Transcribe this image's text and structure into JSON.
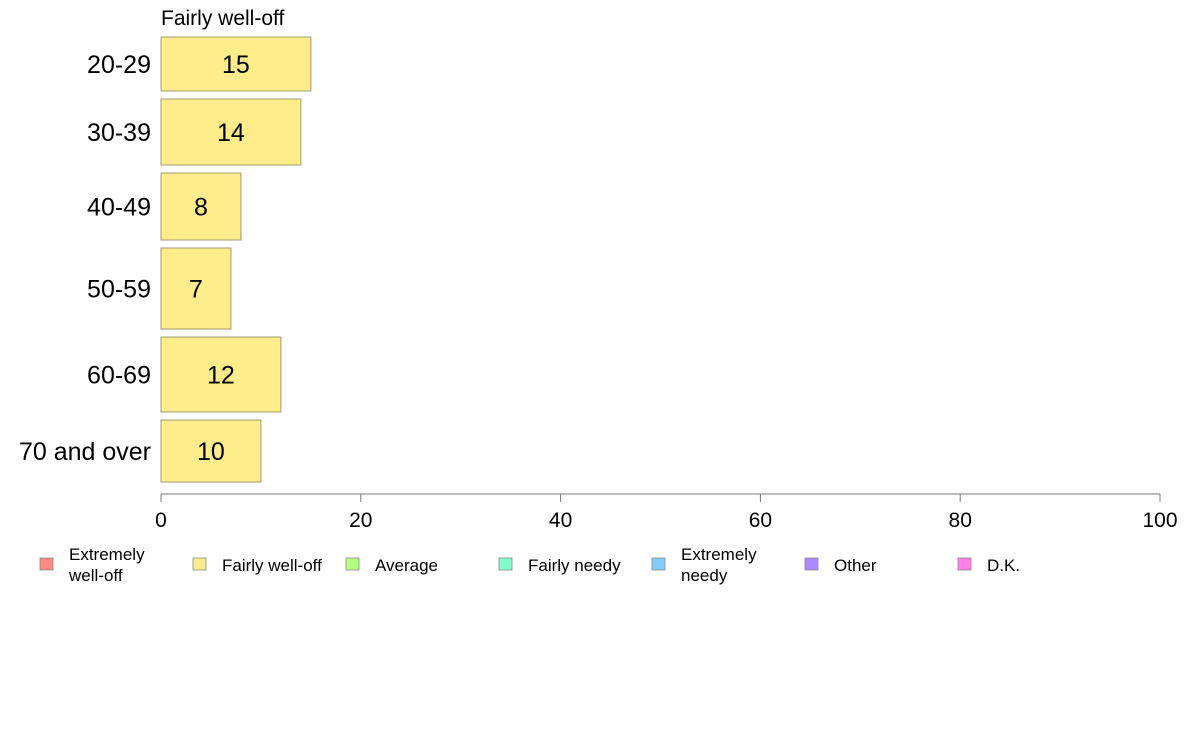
{
  "chart_data": {
    "type": "bar",
    "orientation": "horizontal",
    "panel_title": "Fairly well-off",
    "categories": [
      "20-29",
      "30-39",
      "40-49",
      "50-59",
      "60-69",
      "70 and over"
    ],
    "series": [
      {
        "name": "Fairly well-off",
        "values": [
          15,
          14,
          8,
          7,
          12,
          10
        ],
        "color": "#ffec8b"
      }
    ],
    "xlim": [
      0,
      100
    ],
    "xticks": [
      0,
      20,
      40,
      60,
      80,
      100
    ],
    "grid": false,
    "legend_position": "bottom",
    "legend": [
      {
        "label": "Extremely\nwell-off",
        "color": "#ff8a80"
      },
      {
        "label": "Fairly well-off",
        "color": "#ffec8b"
      },
      {
        "label": "Average",
        "color": "#b2ff80"
      },
      {
        "label": "Fairly needy",
        "color": "#80ffcc"
      },
      {
        "label": "Extremely\nneedy",
        "color": "#80ccff"
      },
      {
        "label": "Other",
        "color": "#a98aff"
      },
      {
        "label": "D.K.",
        "color": "#ff80e6"
      }
    ],
    "bar_stroke": "#a09a70"
  }
}
